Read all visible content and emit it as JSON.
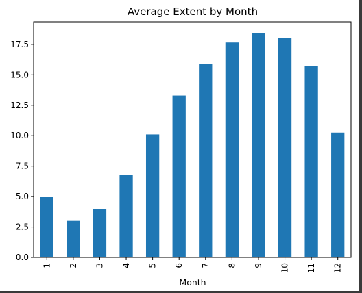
{
  "chart_data": {
    "type": "bar",
    "title": "Average Extent by Month",
    "xlabel": "Month",
    "ylabel": "",
    "categories": [
      "1",
      "2",
      "3",
      "4",
      "5",
      "6",
      "7",
      "8",
      "9",
      "10",
      "11",
      "12"
    ],
    "values": [
      4.95,
      3.0,
      3.95,
      6.8,
      10.1,
      13.3,
      15.9,
      17.65,
      18.45,
      18.05,
      15.75,
      10.25
    ],
    "ylim": [
      0,
      19.35
    ],
    "yticks": [
      0.0,
      2.5,
      5.0,
      7.5,
      10.0,
      12.5,
      15.0,
      17.5
    ],
    "ytick_labels": [
      "0.0",
      "2.5",
      "5.0",
      "7.5",
      "10.0",
      "12.5",
      "15.0",
      "17.5"
    ],
    "bar_color": "#1f77b4",
    "grid": false,
    "legend": "none"
  }
}
